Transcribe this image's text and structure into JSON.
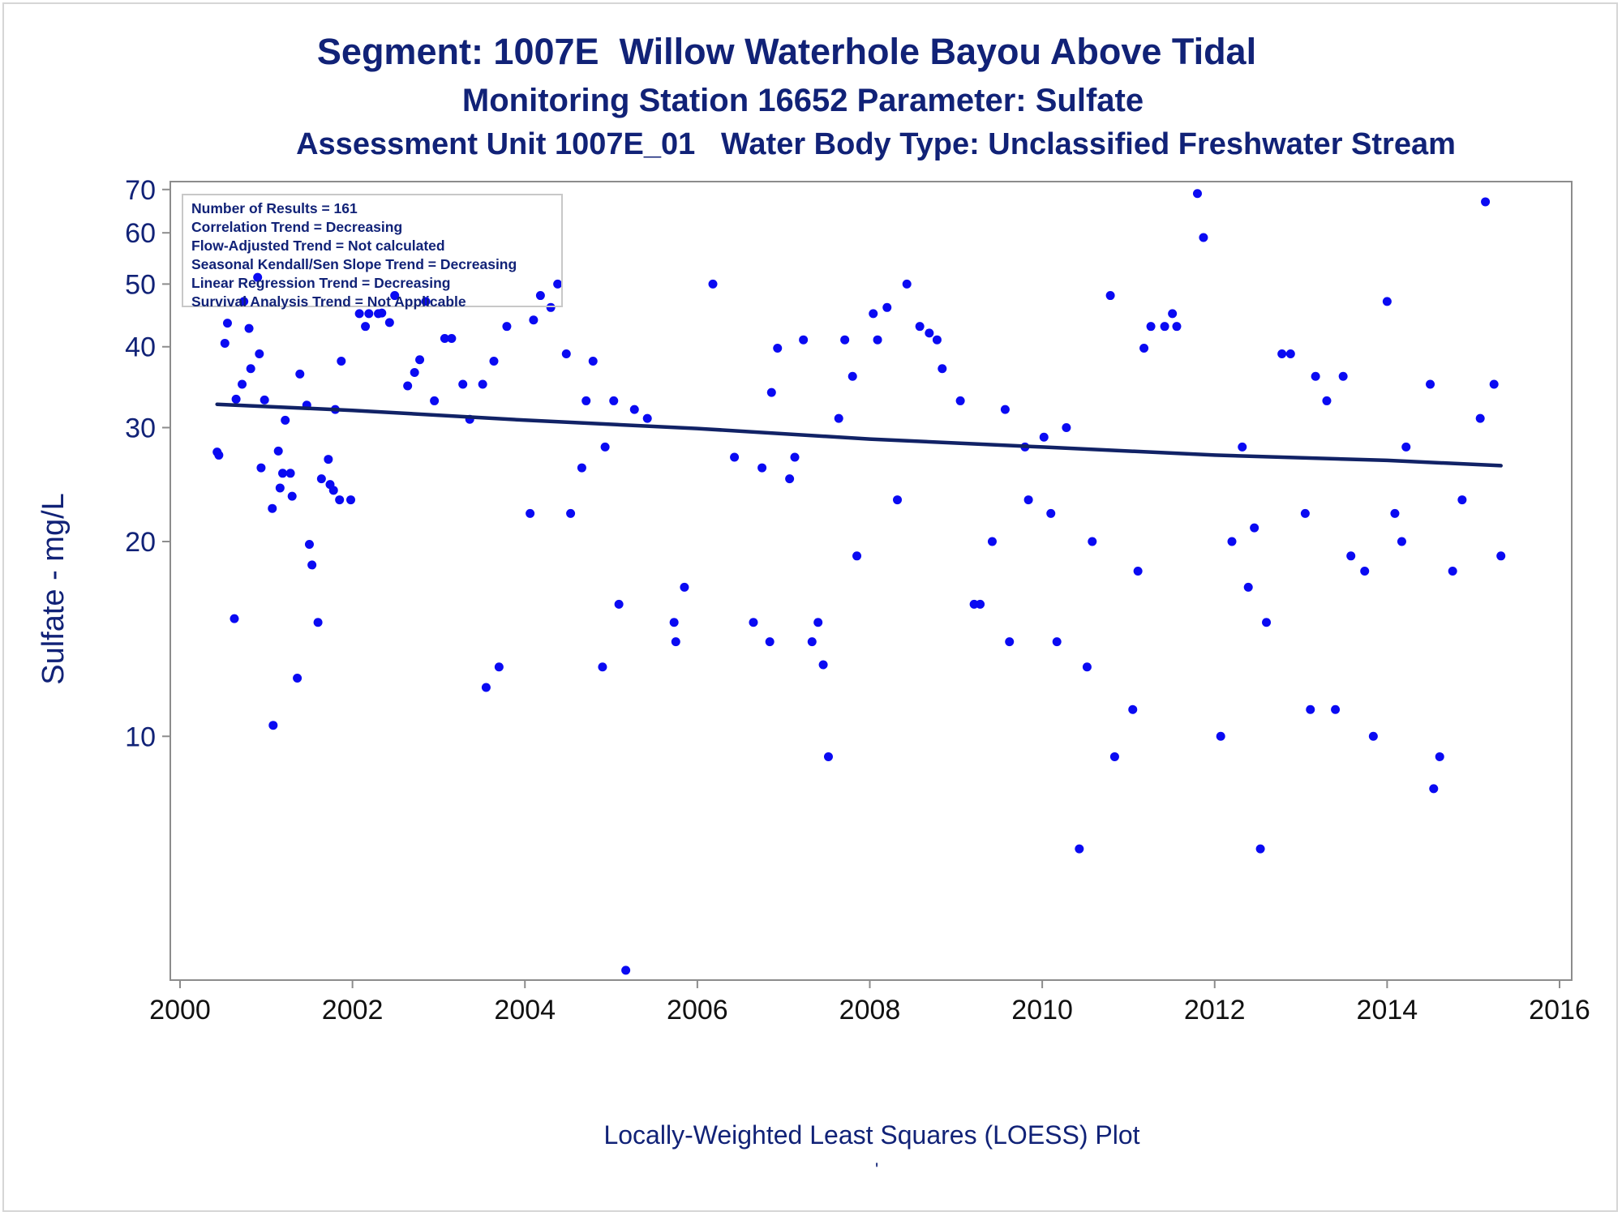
{
  "titles": {
    "line1": "Segment: 1007E  Willow Waterhole Bayou Above Tidal",
    "line2": "Monitoring Station 16652 Parameter: Sulfate",
    "line3": "Assessment Unit 1007E_01   Water Body Type: Unclassified Freshwater Stream"
  },
  "stats_box": [
    "Number of Results = 161",
    "Correlation Trend = Decreasing",
    "Flow-Adjusted Trend = Not calculated",
    "Seasonal Kendall/Sen Slope Trend = Decreasing",
    "Linear Regression Trend = Decreasing",
    "Survival Analysis Trend = Not Applicable"
  ],
  "footnote": "Locally-Weighted Least Squares (LOESS) Plot",
  "footnote_mark": "'",
  "colors": {
    "title_text": "#112277",
    "points": "#0a0af2",
    "trend_line": "#112266",
    "axis": "#8c8c8c"
  },
  "chart_data": {
    "type": "scatter",
    "xlabel": "",
    "ylabel": "Sulfate - mg/L",
    "yscale": "log",
    "xlim": [
      2000,
      2016
    ],
    "ylim": [
      4.2,
      72
    ],
    "xticks": [
      2000,
      2002,
      2004,
      2006,
      2008,
      2010,
      2012,
      2014,
      2016
    ],
    "yticks": [
      10,
      20,
      30,
      40,
      50,
      60,
      70
    ],
    "grid": false,
    "series": [
      {
        "marker": "dot",
        "points": [
          [
            2000.43,
            27.5
          ],
          [
            2000.45,
            27.2
          ],
          [
            2000.52,
            40.5
          ],
          [
            2000.55,
            43.5
          ],
          [
            2000.63,
            15.2
          ],
          [
            2000.65,
            33.2
          ],
          [
            2000.72,
            35.0
          ],
          [
            2000.74,
            47.0
          ],
          [
            2000.8,
            42.7
          ],
          [
            2000.82,
            37.0
          ],
          [
            2000.9,
            51.2
          ],
          [
            2000.92,
            39.0
          ],
          [
            2000.94,
            26.0
          ],
          [
            2000.98,
            33.1
          ],
          [
            2001.07,
            22.5
          ],
          [
            2001.08,
            10.4
          ],
          [
            2001.14,
            27.6
          ],
          [
            2001.16,
            24.2
          ],
          [
            2001.19,
            25.5
          ],
          [
            2001.22,
            30.8
          ],
          [
            2001.28,
            25.5
          ],
          [
            2001.3,
            23.5
          ],
          [
            2001.36,
            12.3
          ],
          [
            2001.39,
            36.3
          ],
          [
            2001.47,
            32.5
          ],
          [
            2001.5,
            19.8
          ],
          [
            2001.53,
            18.4
          ],
          [
            2001.6,
            15.0
          ],
          [
            2001.64,
            25.0
          ],
          [
            2001.72,
            26.8
          ],
          [
            2001.74,
            24.5
          ],
          [
            2001.78,
            24.0
          ],
          [
            2001.8,
            32.0
          ],
          [
            2001.85,
            23.2
          ],
          [
            2001.87,
            38.0
          ],
          [
            2001.98,
            23.2
          ],
          [
            2002.08,
            45.0
          ],
          [
            2002.15,
            43.0
          ],
          [
            2002.19,
            45.0
          ],
          [
            2002.3,
            45.0
          ],
          [
            2002.34,
            45.1
          ],
          [
            2002.43,
            43.6
          ],
          [
            2002.49,
            48.0
          ],
          [
            2002.64,
            34.8
          ],
          [
            2002.72,
            36.5
          ],
          [
            2002.78,
            38.2
          ],
          [
            2002.85,
            47.0
          ],
          [
            2002.95,
            33.0
          ],
          [
            2003.07,
            41.2
          ],
          [
            2003.15,
            41.2
          ],
          [
            2003.28,
            35.0
          ],
          [
            2003.36,
            30.9
          ],
          [
            2003.51,
            35.0
          ],
          [
            2003.55,
            11.9
          ],
          [
            2003.64,
            38.0
          ],
          [
            2003.7,
            12.8
          ],
          [
            2003.79,
            43.0
          ],
          [
            2004.06,
            22.1
          ],
          [
            2004.1,
            44.0
          ],
          [
            2004.18,
            48.0
          ],
          [
            2004.3,
            46.0
          ],
          [
            2004.38,
            50.0
          ],
          [
            2004.48,
            39.0
          ],
          [
            2004.53,
            22.1
          ],
          [
            2004.66,
            26.0
          ],
          [
            2004.71,
            33.0
          ],
          [
            2004.79,
            38.0
          ],
          [
            2004.9,
            12.8
          ],
          [
            2004.93,
            28.0
          ],
          [
            2005.03,
            33.0
          ],
          [
            2005.09,
            16.0
          ],
          [
            2005.17,
            4.35
          ],
          [
            2005.27,
            32.0
          ],
          [
            2005.42,
            31.0
          ],
          [
            2005.73,
            15.0
          ],
          [
            2005.75,
            14.0
          ],
          [
            2005.85,
            17.0
          ],
          [
            2006.18,
            50.0
          ],
          [
            2006.43,
            27.0
          ],
          [
            2006.65,
            15.0
          ],
          [
            2006.75,
            26.0
          ],
          [
            2006.84,
            14.0
          ],
          [
            2006.86,
            34.0
          ],
          [
            2006.93,
            39.8
          ],
          [
            2007.07,
            25.0
          ],
          [
            2007.13,
            27.0
          ],
          [
            2007.23,
            41.0
          ],
          [
            2007.33,
            14.0
          ],
          [
            2007.4,
            15.0
          ],
          [
            2007.46,
            12.9
          ],
          [
            2007.52,
            9.3
          ],
          [
            2007.64,
            31.0
          ],
          [
            2007.71,
            41.0
          ],
          [
            2007.8,
            36.0
          ],
          [
            2007.85,
            19.0
          ],
          [
            2008.04,
            45.0
          ],
          [
            2008.09,
            41.0
          ],
          [
            2008.2,
            46.0
          ],
          [
            2008.32,
            23.2
          ],
          [
            2008.43,
            50.0
          ],
          [
            2008.58,
            43.0
          ],
          [
            2008.69,
            42.0
          ],
          [
            2008.78,
            41.0
          ],
          [
            2008.84,
            37.0
          ],
          [
            2009.05,
            33.0
          ],
          [
            2009.21,
            16.0
          ],
          [
            2009.28,
            16.0
          ],
          [
            2009.42,
            20.0
          ],
          [
            2009.57,
            32.0
          ],
          [
            2009.62,
            14.0
          ],
          [
            2009.8,
            28.0
          ],
          [
            2009.84,
            23.2
          ],
          [
            2010.02,
            29.0
          ],
          [
            2010.1,
            22.1
          ],
          [
            2010.17,
            14.0
          ],
          [
            2010.28,
            30.0
          ],
          [
            2010.43,
            6.7
          ],
          [
            2010.52,
            12.8
          ],
          [
            2010.58,
            20.0
          ],
          [
            2010.79,
            48.0
          ],
          [
            2010.84,
            9.3
          ],
          [
            2011.05,
            11.0
          ],
          [
            2011.11,
            18.0
          ],
          [
            2011.18,
            39.8
          ],
          [
            2011.26,
            43.0
          ],
          [
            2011.42,
            43.0
          ],
          [
            2011.51,
            45.0
          ],
          [
            2011.56,
            43.0
          ],
          [
            2011.8,
            69.0
          ],
          [
            2011.87,
            59.0
          ],
          [
            2012.07,
            10.0
          ],
          [
            2012.2,
            20.0
          ],
          [
            2012.32,
            28.0
          ],
          [
            2012.39,
            17.0
          ],
          [
            2012.46,
            21.0
          ],
          [
            2012.53,
            6.7
          ],
          [
            2012.6,
            15.0
          ],
          [
            2012.78,
            39.0
          ],
          [
            2012.88,
            39.0
          ],
          [
            2013.05,
            22.1
          ],
          [
            2013.11,
            11.0
          ],
          [
            2013.17,
            36.0
          ],
          [
            2013.3,
            33.0
          ],
          [
            2013.4,
            11.0
          ],
          [
            2013.49,
            36.0
          ],
          [
            2013.58,
            19.0
          ],
          [
            2013.74,
            18.0
          ],
          [
            2013.84,
            10.0
          ],
          [
            2014.0,
            47.0
          ],
          [
            2014.09,
            22.1
          ],
          [
            2014.17,
            20.0
          ],
          [
            2014.22,
            28.0
          ],
          [
            2014.5,
            35.0
          ],
          [
            2014.54,
            8.3
          ],
          [
            2014.61,
            9.3
          ],
          [
            2014.76,
            18.0
          ],
          [
            2014.87,
            23.2
          ],
          [
            2015.08,
            31.0
          ],
          [
            2015.14,
            67.0
          ],
          [
            2015.24,
            35.0
          ],
          [
            2015.32,
            19.0
          ]
        ]
      }
    ],
    "trend_line": {
      "x": [
        2000.43,
        2002.0,
        2004.0,
        2006.0,
        2008.0,
        2010.0,
        2012.0,
        2014.0,
        2015.32
      ],
      "y": [
        32.6,
        31.9,
        30.8,
        29.9,
        28.8,
        28.0,
        27.2,
        26.7,
        26.2
      ]
    }
  }
}
